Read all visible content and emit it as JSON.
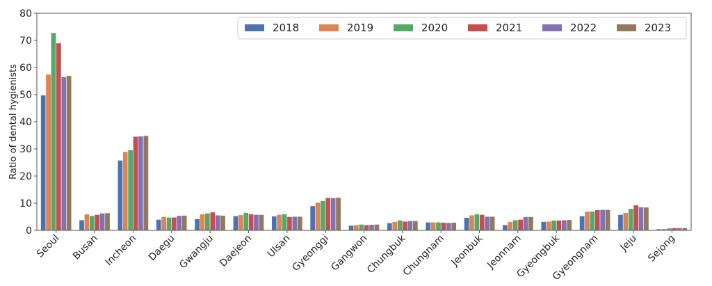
{
  "chart_data": {
    "type": "bar",
    "title": "",
    "xlabel": "",
    "ylabel": "Ratio of dental hygienists",
    "ylim": [
      0,
      80
    ],
    "yticks": [
      0,
      10,
      20,
      30,
      40,
      50,
      60,
      70,
      80
    ],
    "grid": false,
    "legend_position": "top-right",
    "categories": [
      "Seoul",
      "Busan",
      "Incheon",
      "Daegu",
      "Gwangju",
      "Daejeon",
      "Ulsan",
      "Gyeonggi",
      "Gangwon",
      "Chungbuk",
      "Chungnam",
      "Jeonbuk",
      "Jeonnam",
      "Gyeongbuk",
      "Gyeongnam",
      "Jeju",
      "Sejong"
    ],
    "series": [
      {
        "name": "2018",
        "color": "#4c72b0",
        "values": [
          49.8,
          3.8,
          25.8,
          4.0,
          4.2,
          5.3,
          5.2,
          9.0,
          1.8,
          2.7,
          3.0,
          4.7,
          2.0,
          3.2,
          5.3,
          5.8,
          0.5
        ]
      },
      {
        "name": "2019",
        "color": "#dd8452",
        "values": [
          57.5,
          6.0,
          29.0,
          5.0,
          6.0,
          5.7,
          5.8,
          10.3,
          2.0,
          3.2,
          3.0,
          5.6,
          3.2,
          3.3,
          7.0,
          6.5,
          0.6
        ]
      },
      {
        "name": "2020",
        "color": "#55a868",
        "values": [
          72.8,
          5.4,
          29.6,
          4.8,
          6.3,
          6.5,
          6.0,
          10.9,
          2.2,
          3.7,
          3.0,
          6.0,
          3.8,
          3.7,
          7.0,
          8.0,
          0.8
        ]
      },
      {
        "name": "2021",
        "color": "#c44e52",
        "values": [
          69.0,
          5.8,
          34.6,
          4.8,
          6.7,
          6.0,
          5.0,
          12.0,
          2.0,
          3.3,
          2.9,
          5.8,
          4.0,
          3.7,
          7.5,
          9.3,
          0.9
        ]
      },
      {
        "name": "2022",
        "color": "#8172b3",
        "values": [
          56.5,
          6.3,
          34.7,
          5.4,
          5.6,
          5.8,
          5.1,
          12.0,
          2.1,
          3.5,
          2.8,
          5.1,
          5.0,
          3.8,
          7.6,
          8.6,
          0.9
        ]
      },
      {
        "name": "2023",
        "color": "#937860",
        "values": [
          57.0,
          6.4,
          34.9,
          5.5,
          5.5,
          5.8,
          5.1,
          12.1,
          2.2,
          3.5,
          2.9,
          5.1,
          5.0,
          3.9,
          7.6,
          8.5,
          0.9
        ]
      }
    ]
  }
}
